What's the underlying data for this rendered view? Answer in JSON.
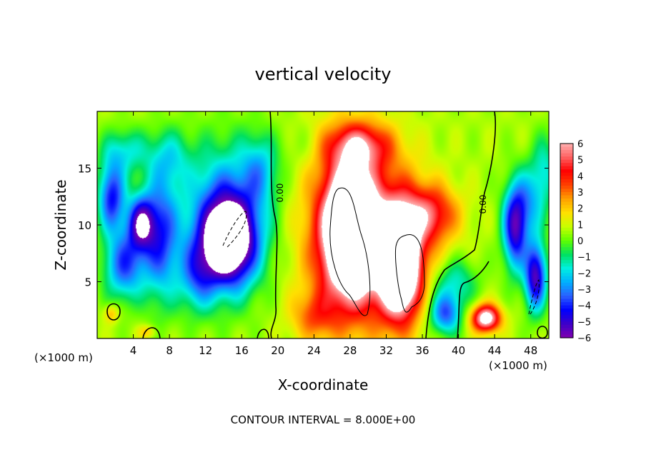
{
  "chart_data": {
    "type": "heatmap",
    "title": "vertical velocity",
    "xlabel": "X-coordinate",
    "ylabel": "Z-coordinate",
    "x_unit": "(×1000 m)",
    "x_unit_right": "(×1000 m)",
    "xlim": [
      0,
      50
    ],
    "ylim": [
      0,
      20
    ],
    "x_ticks": [
      4,
      8,
      12,
      16,
      20,
      24,
      28,
      32,
      36,
      40,
      44,
      48
    ],
    "x_tick_labels": [
      "4",
      "8",
      "12",
      "16",
      "20",
      "24",
      "28",
      "32",
      "36",
      "40",
      "44",
      "48"
    ],
    "y_ticks": [
      5,
      10,
      15
    ],
    "y_tick_labels": [
      "5",
      "10",
      "15"
    ],
    "colorbar": {
      "min": -6,
      "max": 6,
      "ticks": [
        6,
        5,
        4,
        3,
        2,
        1,
        0,
        -1,
        -2,
        -3,
        -4,
        -5,
        -6
      ],
      "tick_labels": [
        "6",
        "5",
        "4",
        "3",
        "2",
        "1",
        "0",
        "−1",
        "−2",
        "−3",
        "−4",
        "−5",
        "−6"
      ],
      "colors": [
        "#7f00b0",
        "#3d00c8",
        "#0000ff",
        "#2a60ff",
        "#00b0ff",
        "#00f0e0",
        "#00e060",
        "#60ff00",
        "#c8ff00",
        "#ffe000",
        "#ffa000",
        "#ff4000",
        "#ff0000",
        "#ff6060",
        "#ffb0b0"
      ]
    },
    "contour_labels": [
      "0.00",
      "0.00"
    ],
    "footer": "CONTOUR INTERVAL = 8.000E+00",
    "features": [
      {
        "x": 4.8,
        "z": 10.2,
        "w": -5.5,
        "rx": 1.5,
        "rz": 2.4
      },
      {
        "x": 3.0,
        "z": 6.5,
        "w": -4.2,
        "rx": 2.2,
        "rz": 3.0
      },
      {
        "x": 7.0,
        "z": 9.0,
        "w": -4.2,
        "rx": 2.0,
        "rz": 5.5
      },
      {
        "x": 1.6,
        "z": 12.5,
        "w": -4.8,
        "rx": 1.5,
        "rz": 3.0
      },
      {
        "x": 3.0,
        "z": 16.5,
        "w": -2.2,
        "rx": 2.5,
        "rz": 2.0
      },
      {
        "x": 8.0,
        "z": 16.0,
        "w": -1.8,
        "rx": 2.5,
        "rz": 2.5
      },
      {
        "x": 11.0,
        "z": 5.5,
        "w": -2.8,
        "rx": 2.0,
        "rz": 3.0
      },
      {
        "x": 14.5,
        "z": 8.5,
        "w": -7.2,
        "rx": 2.8,
        "rz": 3.5
      },
      {
        "x": 14.2,
        "z": 10.5,
        "w": -4.5,
        "rx": 4.5,
        "rz": 6.0
      },
      {
        "x": 18.0,
        "z": 15.0,
        "w": -2.2,
        "rx": 2.0,
        "rz": 3.0
      },
      {
        "x": 22.5,
        "z": 17.0,
        "w": -0.6,
        "rx": 2.0,
        "rz": 2.0
      },
      {
        "x": 28.0,
        "z": 9.5,
        "w": 9.5,
        "rx": 2.6,
        "rz": 5.0
      },
      {
        "x": 27.5,
        "z": 9.0,
        "w": 4.0,
        "rx": 4.8,
        "rz": 8.0
      },
      {
        "x": 29.0,
        "z": 17.0,
        "w": 3.8,
        "rx": 3.5,
        "rz": 2.0
      },
      {
        "x": 33.5,
        "z": 6.5,
        "w": 8.5,
        "rx": 2.0,
        "rz": 4.2
      },
      {
        "x": 33.0,
        "z": 8.0,
        "w": 3.8,
        "rx": 4.0,
        "rz": 6.5
      },
      {
        "x": 37.0,
        "z": 11.0,
        "w": 3.5,
        "rx": 3.0,
        "rz": 2.5
      },
      {
        "x": 24.0,
        "z": 2.0,
        "w": 2.0,
        "rx": 2.5,
        "rz": 2.0
      },
      {
        "x": 38.5,
        "z": 2.2,
        "w": -4.2,
        "rx": 1.8,
        "rz": 1.8
      },
      {
        "x": 39.5,
        "z": 5.0,
        "w": -2.2,
        "rx": 2.5,
        "rz": 2.0
      },
      {
        "x": 43.0,
        "z": 1.8,
        "w": 6.5,
        "rx": 1.6,
        "rz": 1.2
      },
      {
        "x": 46.2,
        "z": 9.5,
        "w": -5.2,
        "rx": 1.3,
        "rz": 3.5
      },
      {
        "x": 48.5,
        "z": 5.5,
        "w": -6.0,
        "rx": 1.2,
        "rz": 3.0
      },
      {
        "x": 47.5,
        "z": 12.0,
        "w": -2.8,
        "rx": 2.0,
        "rz": 3.0
      },
      {
        "x": 49.5,
        "z": 15.0,
        "w": -2.0,
        "rx": 1.5,
        "rz": 3.0
      },
      {
        "x": 1.5,
        "z": 2.2,
        "w": 1.8,
        "rx": 0.8,
        "rz": 0.8
      },
      {
        "x": 5.5,
        "z": 0.6,
        "w": 1.5,
        "rx": 1.0,
        "rz": 0.6
      }
    ],
    "background_w": 0.6
  }
}
